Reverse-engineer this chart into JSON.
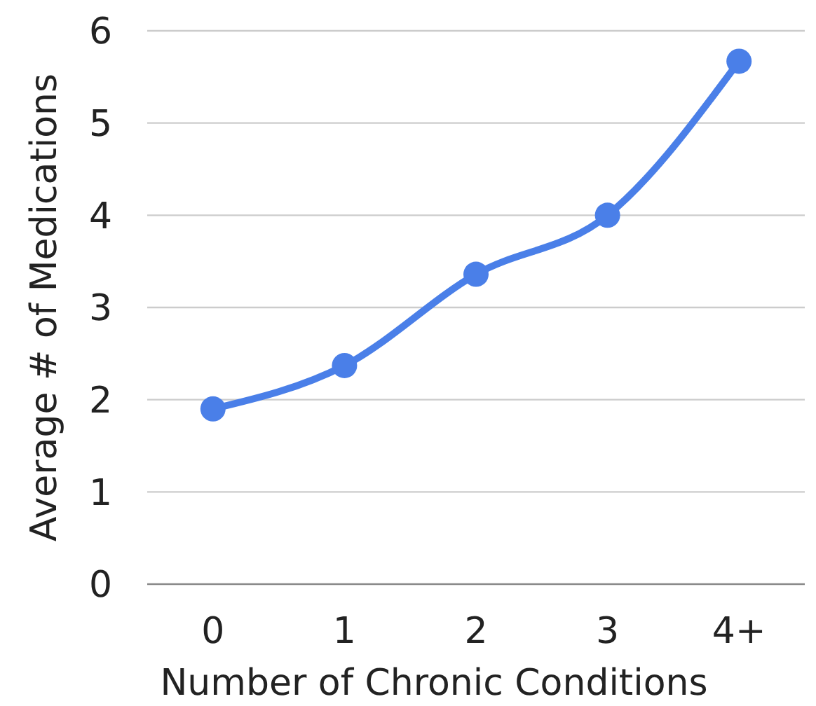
{
  "chart_data": {
    "type": "line",
    "xlabel": "Number of Chronic Conditions",
    "ylabel": "Average # of Medications",
    "categories": [
      "0",
      "1",
      "2",
      "3",
      "4+"
    ],
    "series": [
      {
        "color": "#4a7fe8",
        "values": [
          1.9,
          2.37,
          3.36,
          4.0,
          5.67
        ]
      }
    ],
    "ylim": [
      0,
      6
    ],
    "yticks": [
      0,
      1,
      2,
      3,
      4,
      5,
      6
    ],
    "grid": "y",
    "marker": "circle",
    "line_style": "solid"
  }
}
